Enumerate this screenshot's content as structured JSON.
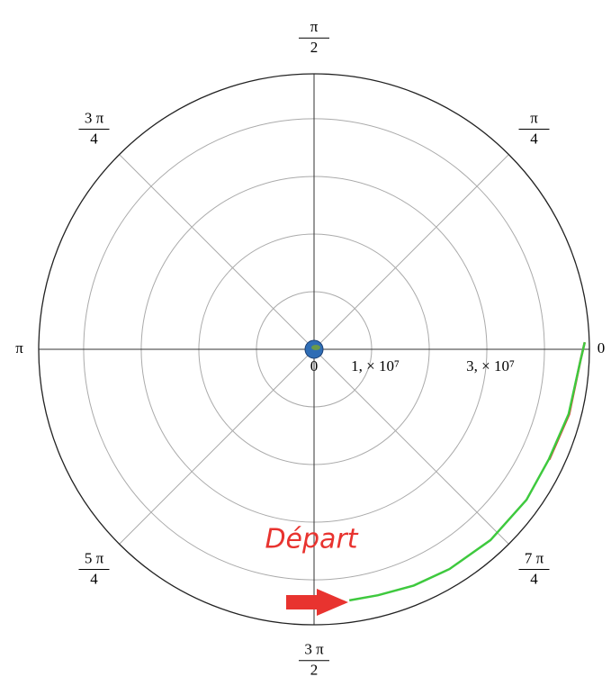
{
  "chart_data": {
    "type": "polar",
    "annotation": "Départ",
    "rlim": [
      0,
      47800000
    ],
    "rticks": [
      0,
      {
        "value": 10000000,
        "label": "1, × 10⁷"
      },
      {
        "value": 30000000,
        "label": "3, × 10⁷"
      }
    ],
    "rgrid": [
      10000000,
      20000000,
      30000000,
      40000000
    ],
    "thetaticks": [
      0,
      {
        "value": 0.7854,
        "label": [
          "π",
          "4"
        ]
      },
      {
        "value": 1.5708,
        "label": [
          "π",
          "2"
        ]
      },
      {
        "value": 2.3562,
        "label": [
          "3 π",
          "4"
        ]
      },
      {
        "value": 3.1416,
        "label": "π"
      },
      {
        "value": 3.927,
        "label": [
          "5 π",
          "4"
        ]
      },
      {
        "value": 4.7124,
        "label": [
          "3 π",
          "2"
        ]
      },
      {
        "value": 5.4978,
        "label": [
          "7 π",
          "4"
        ]
      }
    ],
    "grid": true,
    "series": [
      {
        "color": "#e8332f",
        "theta": [
          0.026,
          6.243,
          6.034,
          5.845
        ],
        "r": [
          47000000,
          46300000,
          45700000,
          45100000
        ]
      },
      {
        "color": "#3ec93e",
        "theta": [
          0.026,
          6.243,
          6.034,
          5.845,
          5.667,
          5.459,
          5.265,
          5.112,
          4.967,
          4.852
        ],
        "r": [
          47000000,
          46300000,
          45600000,
          45000000,
          45200000,
          45100000,
          44800000,
          44500000,
          44100000,
          44000000
        ]
      }
    ]
  }
}
